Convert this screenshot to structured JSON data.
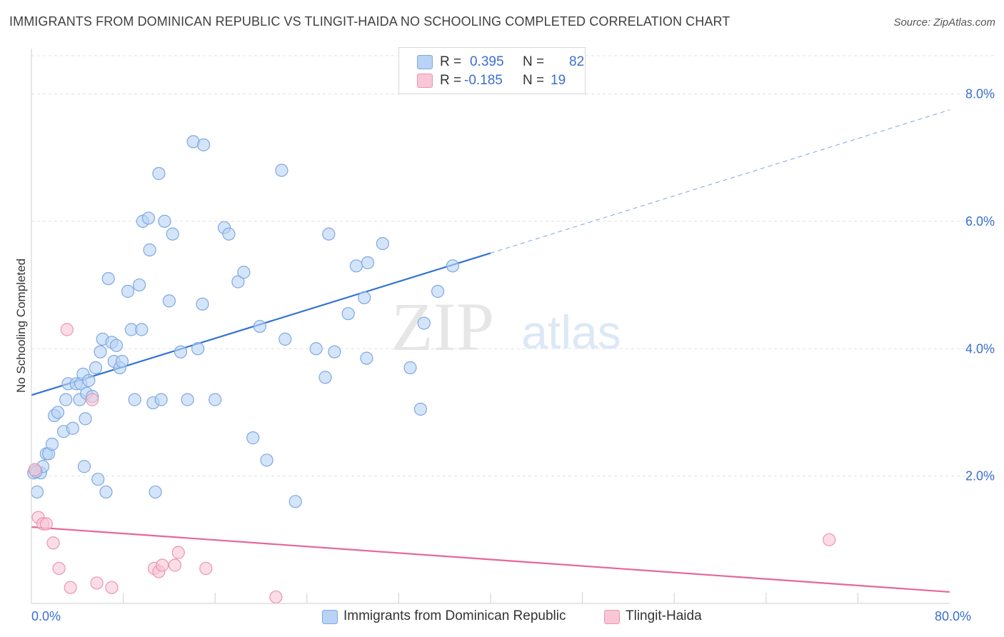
{
  "title": "IMMIGRANTS FROM DOMINICAN REPUBLIC VS TLINGIT-HAIDA NO SCHOOLING COMPLETED CORRELATION CHART",
  "source": "Source: ZipAtlas.com",
  "watermark": {
    "zip": "ZIP",
    "atlas": "atlas"
  },
  "legend": {
    "series1": {
      "r_label": "R =",
      "r_value": "0.395",
      "n_label": "N =",
      "n_value": "82"
    },
    "series2": {
      "r_label": "R =",
      "r_value": "-0.185",
      "n_label": "N =",
      "n_value": "19"
    }
  },
  "colors": {
    "blue_fill": "#b8d3f5",
    "blue_stroke": "#7fa8e0",
    "blue_line": "#3272d6",
    "pink_fill": "#f9c6d6",
    "pink_stroke": "#eb94b2",
    "pink_line": "#e5679a",
    "axis_label": "#3a6fd0",
    "grid": "#e0e0e0"
  },
  "chart_data": {
    "type": "scatter",
    "title": "IMMIGRANTS FROM DOMINICAN REPUBLIC VS TLINGIT-HAIDA NO SCHOOLING COMPLETED CORRELATION CHART",
    "xlabel": "",
    "ylabel": "No Schooling Completed",
    "xlim": [
      0,
      80
    ],
    "ylim": [
      0,
      8.6
    ],
    "x_tick_labels": [
      {
        "value": 0,
        "label": "0.0%"
      },
      {
        "value": 80,
        "label": "80.0%"
      }
    ],
    "y_ticks": [
      {
        "value": 2,
        "label": "2.0%"
      },
      {
        "value": 4,
        "label": "4.0%"
      },
      {
        "value": 6,
        "label": "6.0%"
      },
      {
        "value": 8,
        "label": "8.0%"
      }
    ],
    "x_minor_ticks": [
      8,
      16,
      24,
      32,
      40,
      48,
      56,
      64,
      72
    ],
    "series": [
      {
        "name": "Immigrants from Dominican Republic",
        "color": "blue",
        "R": 0.395,
        "N": 82,
        "trend": {
          "x0": 0,
          "y0": 3.27,
          "x1": 40,
          "y1": 5.5,
          "dashed_to_x": 80,
          "dashed_to_y": 7.75
        },
        "points": [
          [
            0.2,
            2.05
          ],
          [
            0.3,
            2.1
          ],
          [
            0.5,
            1.75
          ],
          [
            0.8,
            2.05
          ],
          [
            1.0,
            2.15
          ],
          [
            1.3,
            2.35
          ],
          [
            1.5,
            2.35
          ],
          [
            1.8,
            2.5
          ],
          [
            2.0,
            2.95
          ],
          [
            2.3,
            3.0
          ],
          [
            2.8,
            2.7
          ],
          [
            3.0,
            3.2
          ],
          [
            3.2,
            3.45
          ],
          [
            3.6,
            2.75
          ],
          [
            3.9,
            3.45
          ],
          [
            4.2,
            3.2
          ],
          [
            4.3,
            3.45
          ],
          [
            4.5,
            3.6
          ],
          [
            4.6,
            2.15
          ],
          [
            4.7,
            2.9
          ],
          [
            4.8,
            3.3
          ],
          [
            5.0,
            3.5
          ],
          [
            5.3,
            3.25
          ],
          [
            5.6,
            3.7
          ],
          [
            5.8,
            1.95
          ],
          [
            6.0,
            3.95
          ],
          [
            6.2,
            4.15
          ],
          [
            6.5,
            1.75
          ],
          [
            6.7,
            5.1
          ],
          [
            7.0,
            4.1
          ],
          [
            7.2,
            3.8
          ],
          [
            7.4,
            4.05
          ],
          [
            7.7,
            3.7
          ],
          [
            7.9,
            3.8
          ],
          [
            8.4,
            4.9
          ],
          [
            8.7,
            4.3
          ],
          [
            9.0,
            3.2
          ],
          [
            9.4,
            5.0
          ],
          [
            9.6,
            4.3
          ],
          [
            9.7,
            6.0
          ],
          [
            10.2,
            6.05
          ],
          [
            10.3,
            5.55
          ],
          [
            10.6,
            3.15
          ],
          [
            10.8,
            1.75
          ],
          [
            11.1,
            6.75
          ],
          [
            11.3,
            3.2
          ],
          [
            11.6,
            6.0
          ],
          [
            12.0,
            4.75
          ],
          [
            12.3,
            5.8
          ],
          [
            13.0,
            3.95
          ],
          [
            13.6,
            3.2
          ],
          [
            14.1,
            7.25
          ],
          [
            14.5,
            4.0
          ],
          [
            14.9,
            4.7
          ],
          [
            15.0,
            7.2
          ],
          [
            16.0,
            3.2
          ],
          [
            16.8,
            5.9
          ],
          [
            17.2,
            5.8
          ],
          [
            18.0,
            5.05
          ],
          [
            18.5,
            5.2
          ],
          [
            19.3,
            2.6
          ],
          [
            19.9,
            4.35
          ],
          [
            20.5,
            2.25
          ],
          [
            21.8,
            6.8
          ],
          [
            22.1,
            4.15
          ],
          [
            23.0,
            1.6
          ],
          [
            24.8,
            4.0
          ],
          [
            25.6,
            3.55
          ],
          [
            25.9,
            5.8
          ],
          [
            26.4,
            3.95
          ],
          [
            27.6,
            4.55
          ],
          [
            28.3,
            5.3
          ],
          [
            29.0,
            4.8
          ],
          [
            29.2,
            3.85
          ],
          [
            29.3,
            5.35
          ],
          [
            30.6,
            5.65
          ],
          [
            33.0,
            3.7
          ],
          [
            33.9,
            3.05
          ],
          [
            34.2,
            4.4
          ],
          [
            35.4,
            4.9
          ],
          [
            36.7,
            5.3
          ],
          [
            0.4,
            2.07
          ]
        ]
      },
      {
        "name": "Tlingit-Haida",
        "color": "pink",
        "R": -0.185,
        "N": 19,
        "trend": {
          "x0": 0,
          "y0": 1.2,
          "x1": 80,
          "y1": 0.18
        },
        "points": [
          [
            0.3,
            2.1
          ],
          [
            0.6,
            1.35
          ],
          [
            1.0,
            1.25
          ],
          [
            1.3,
            1.25
          ],
          [
            1.9,
            0.95
          ],
          [
            2.4,
            0.55
          ],
          [
            3.1,
            4.3
          ],
          [
            3.4,
            0.25
          ],
          [
            5.3,
            3.2
          ],
          [
            5.7,
            0.32
          ],
          [
            7.0,
            0.25
          ],
          [
            10.7,
            0.55
          ],
          [
            11.1,
            0.5
          ],
          [
            11.4,
            0.6
          ],
          [
            12.5,
            0.6
          ],
          [
            12.8,
            0.8
          ],
          [
            15.2,
            0.55
          ],
          [
            21.3,
            0.1
          ],
          [
            69.5,
            1.0
          ]
        ]
      }
    ]
  },
  "bottom_legend": [
    {
      "label": "Immigrants from Dominican Republic",
      "color": "blue"
    },
    {
      "label": "Tlingit-Haida",
      "color": "pink"
    }
  ]
}
